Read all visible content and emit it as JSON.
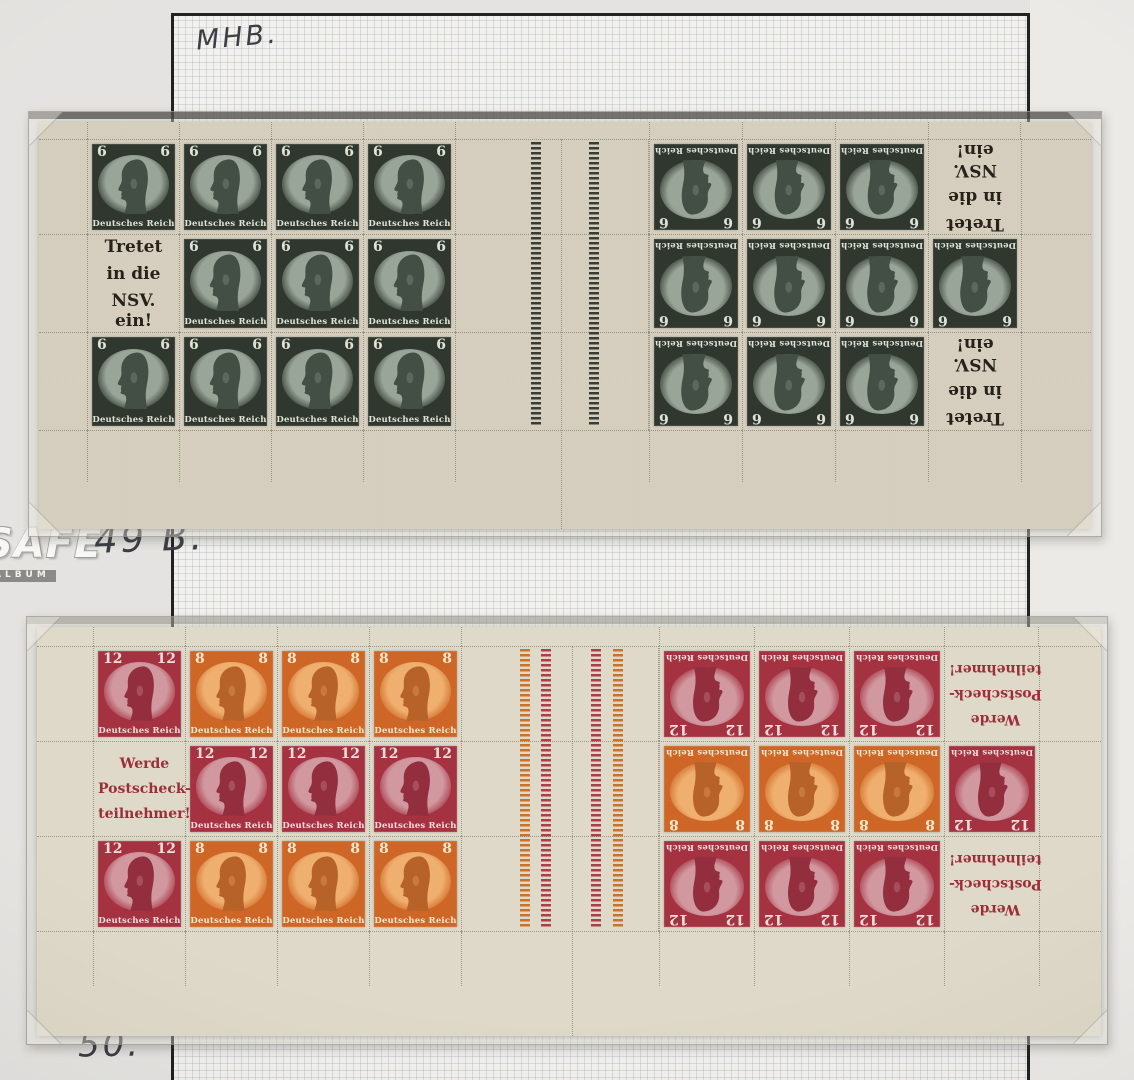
{
  "annotations": {
    "top_left_note": "MHB.",
    "middle_note": "49 B.",
    "bottom_note": "50."
  },
  "watermark": {
    "brand": "SAFE",
    "subtext": "ALBUM"
  },
  "stamp_types": {
    "s6": {
      "value": "6",
      "caption": "Deutsches Reich",
      "bg": "#242c23",
      "oval": "#93a092",
      "profile": "#39443a",
      "ink": "#dde1d3"
    },
    "s12": {
      "value": "12",
      "caption": "Deutsches Reich",
      "bg": "#a02737",
      "oval": "#cf939b",
      "profile": "#8d2334",
      "ink": "#f2dbd8"
    },
    "s8": {
      "value": "8",
      "caption": "Deutsches Reich",
      "bg": "#cb5e1b",
      "oval": "#eeab67",
      "profile": "#b35a1e",
      "ink": "#f8e7cb"
    }
  },
  "sheets": [
    {
      "name": "booklet-pane-6pf-nsv",
      "paper_color": "#d3ccbb",
      "ad_label": {
        "lines": [
          "Tretet",
          "in die",
          "NSV. ein!"
        ],
        "color": "#1c150e"
      },
      "gutter_bar_colors": [
        "#30312a",
        "#30312a"
      ],
      "blocks": {
        "left": [
          [
            "s6",
            "s6",
            "s6",
            "s6"
          ],
          [
            "ad",
            "s6",
            "s6",
            "s6"
          ],
          [
            "s6",
            "s6",
            "s6",
            "s6"
          ]
        ],
        "right": [
          [
            "s6i",
            "s6i",
            "s6i",
            "adi"
          ],
          [
            "s6i",
            "s6i",
            "s6i",
            "s6i"
          ],
          [
            "s6i",
            "s6i",
            "s6i",
            "adi"
          ]
        ]
      }
    },
    {
      "name": "booklet-pane-8-12pf-postscheck",
      "paper_color": "#ddd7c6",
      "ad_label": {
        "lines": [
          "Werde",
          "Postscheck-",
          "teilnehmer!"
        ],
        "color": "#97232e"
      },
      "gutter_bar_colors": [
        "#c96c20",
        "#aa3440",
        "#aa3440",
        "#c96c20"
      ],
      "blocks": {
        "left": [
          [
            "s12",
            "s8",
            "s8",
            "s8"
          ],
          [
            "ad",
            "s12",
            "s12",
            "s12"
          ],
          [
            "s12",
            "s8",
            "s8",
            "s8"
          ]
        ],
        "right": [
          [
            "s12i",
            "s12i",
            "s12i",
            "adi"
          ],
          [
            "s8i",
            "s8i",
            "s8i",
            "s12i"
          ],
          [
            "s12i",
            "s12i",
            "s12i",
            "adi"
          ]
        ]
      }
    }
  ]
}
